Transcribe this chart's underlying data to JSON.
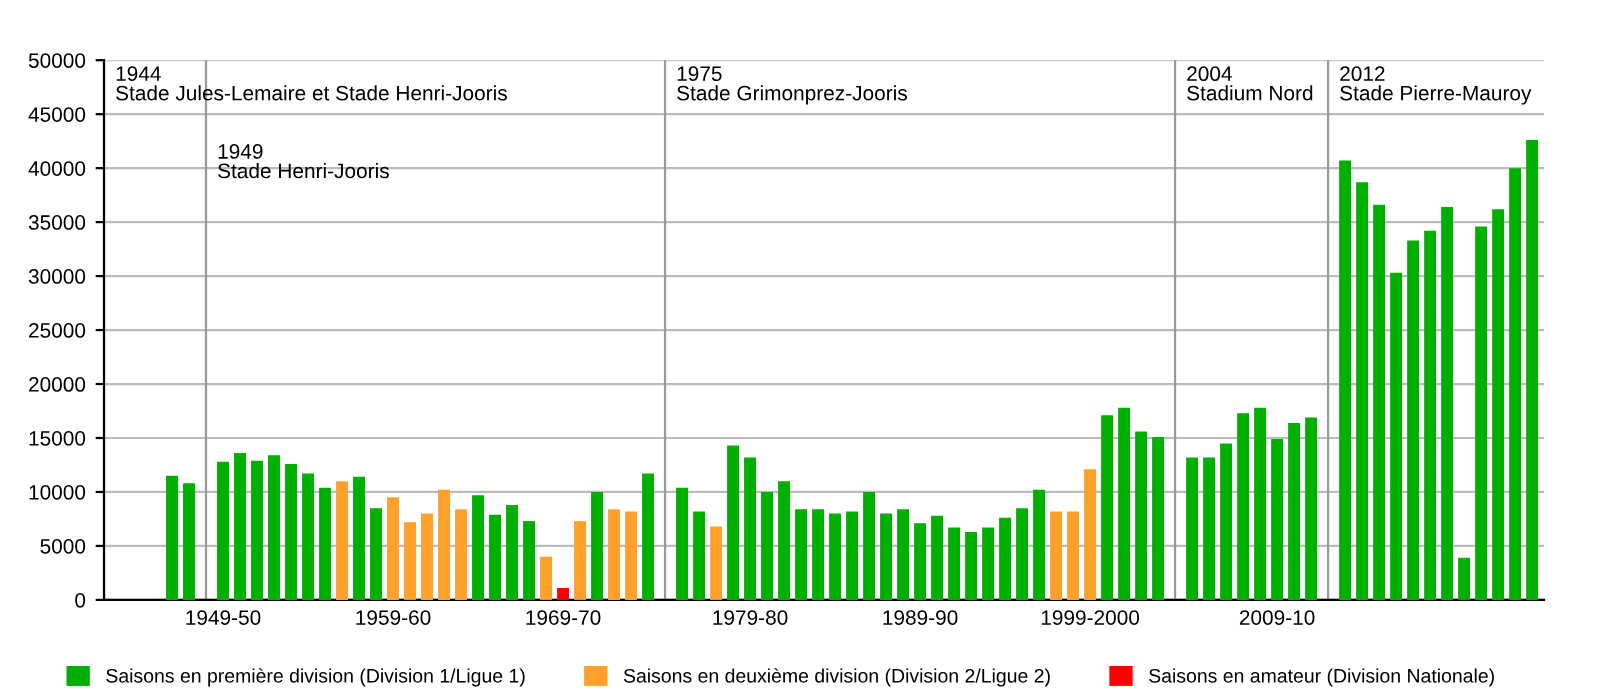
{
  "chart_data": {
    "type": "bar",
    "categories": [
      null,
      null,
      null,
      null,
      null,
      null,
      null,
      "1949-50",
      null,
      null,
      null,
      null,
      null,
      null,
      null,
      null,
      null,
      "1959-60",
      null,
      null,
      null,
      null,
      null,
      null,
      null,
      null,
      null,
      "1969-70",
      null,
      null,
      null,
      null,
      null,
      null,
      null,
      null,
      null,
      null,
      "1979-80",
      null,
      null,
      null,
      null,
      null,
      null,
      null,
      null,
      null,
      "1989-90",
      null,
      null,
      null,
      null,
      null,
      null,
      null,
      null,
      null,
      "1999-2000",
      null,
      null,
      null,
      null,
      null,
      null,
      null,
      null,
      null,
      null,
      "2009-10",
      null,
      null,
      null,
      null,
      null,
      null,
      null,
      null,
      null,
      null,
      null,
      null,
      null,
      null,
      null
    ],
    "series": [
      {
        "name": "Saisons en première division (Division 1/Ligue 1)",
        "color": "#00b000",
        "values": [
          null,
          null,
          null,
          null,
          11500,
          10800,
          null,
          12800,
          13600,
          12900,
          13400,
          12600,
          11700,
          10400,
          null,
          11400,
          8500,
          null,
          null,
          null,
          null,
          null,
          9700,
          7900,
          8800,
          7300,
          null,
          null,
          null,
          10000,
          null,
          null,
          11700,
          null,
          10400,
          8200,
          null,
          14300,
          13200,
          10000,
          11000,
          8400,
          8400,
          8000,
          8200,
          10000,
          8000,
          8400,
          7100,
          7800,
          6700,
          6300,
          6700,
          7600,
          8500,
          10200,
          null,
          null,
          null,
          17100,
          17800,
          15600,
          15100,
          null,
          13200,
          13200,
          14500,
          17300,
          17800,
          14900,
          16400,
          16900,
          null,
          40700,
          38700,
          36600,
          30300,
          33300,
          34200,
          36400,
          3900,
          34600,
          36200,
          40000,
          42600
        ]
      },
      {
        "name": "Saisons en deuxième division (Division 2/Ligue 2)",
        "color": "#ffa02a",
        "values": [
          null,
          null,
          null,
          null,
          null,
          null,
          null,
          null,
          null,
          null,
          null,
          null,
          null,
          null,
          11000,
          null,
          null,
          9500,
          7200,
          8000,
          10200,
          8400,
          null,
          null,
          null,
          null,
          4000,
          null,
          7300,
          null,
          8400,
          8200,
          null,
          null,
          null,
          null,
          6800,
          null,
          null,
          null,
          null,
          null,
          null,
          null,
          null,
          null,
          null,
          null,
          null,
          null,
          null,
          null,
          null,
          null,
          null,
          null,
          8200,
          8200,
          12100,
          null,
          null,
          null,
          null,
          null,
          null,
          null,
          null,
          null,
          null,
          null,
          null,
          null,
          null,
          null,
          null,
          null,
          null,
          null,
          null,
          null,
          null,
          null,
          null,
          null,
          null
        ]
      },
      {
        "name": "Saisons en amateur (Division Nationale)",
        "color": "#ff0000",
        "values": [
          null,
          null,
          null,
          null,
          null,
          null,
          null,
          null,
          null,
          null,
          null,
          null,
          null,
          null,
          null,
          null,
          null,
          null,
          null,
          null,
          null,
          null,
          null,
          null,
          null,
          null,
          null,
          1100,
          null,
          null,
          null,
          null,
          null,
          null,
          null,
          null,
          null,
          null,
          null,
          null,
          null,
          null,
          null,
          null,
          null,
          null,
          null,
          null,
          null,
          null,
          null,
          null,
          null,
          null,
          null,
          null,
          null,
          null,
          null,
          null,
          null,
          null,
          null,
          null,
          null,
          null,
          null,
          null,
          null,
          null,
          null,
          null,
          null,
          null,
          null,
          null,
          null,
          null,
          null,
          null,
          null,
          null,
          null,
          null,
          null
        ]
      }
    ],
    "ylim": [
      0,
      50000
    ],
    "yticks": [
      0,
      5000,
      10000,
      15000,
      20000,
      25000,
      30000,
      35000,
      40000,
      45000,
      50000
    ],
    "grid": "y",
    "legend": "bottom",
    "annotations": [
      "1944\nStade Jules-Lemaire et Stade Henri-Jooris",
      "1949\nStade Henri-Jooris",
      "1975\nStade Grimonprez-Jooris",
      "2004\nStadium Nord",
      "2012\nStade Pierre-Mauroy"
    ]
  }
}
